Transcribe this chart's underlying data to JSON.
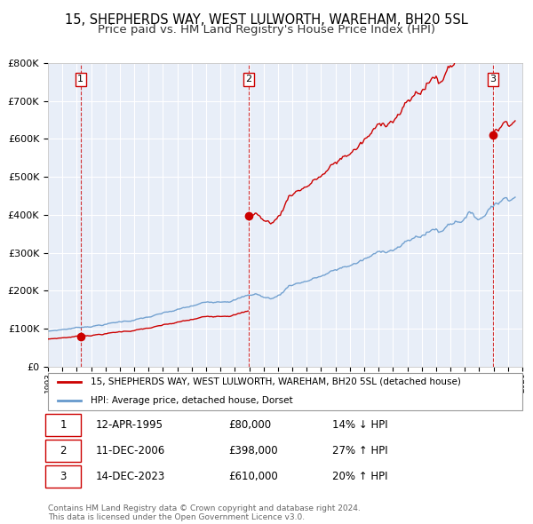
{
  "title": "15, SHEPHERDS WAY, WEST LULWORTH, WAREHAM, BH20 5SL",
  "subtitle": "Price paid vs. HM Land Registry's House Price Index (HPI)",
  "xlim": [
    1993.0,
    2026.0
  ],
  "ylim": [
    0,
    800000
  ],
  "yticks": [
    0,
    100000,
    200000,
    300000,
    400000,
    500000,
    600000,
    700000,
    800000
  ],
  "background_color": "#e8eef8",
  "grid_color": "#ffffff",
  "sale_color": "#cc0000",
  "hpi_color": "#6699cc",
  "vline_color": "#cc0000",
  "sale_marker_color": "#cc0000",
  "transactions": [
    {
      "num": 1,
      "date": "12-APR-1995",
      "price": 80000,
      "pct": "14%",
      "dir": "↓",
      "year": 1995.27
    },
    {
      "num": 2,
      "date": "11-DEC-2006",
      "price": 398000,
      "pct": "27%",
      "dir": "↑",
      "year": 2006.95
    },
    {
      "num": 3,
      "date": "14-DEC-2023",
      "price": 610000,
      "pct": "20%",
      "dir": "↑",
      "year": 2023.95
    }
  ],
  "legend_label_sale": "15, SHEPHERDS WAY, WEST LULWORTH, WAREHAM, BH20 5SL (detached house)",
  "legend_label_hpi": "HPI: Average price, detached house, Dorset",
  "footnote": "Contains HM Land Registry data © Crown copyright and database right 2024.\nThis data is licensed under the Open Government Licence v3.0.",
  "title_fontsize": 10.5,
  "subtitle_fontsize": 9.5
}
